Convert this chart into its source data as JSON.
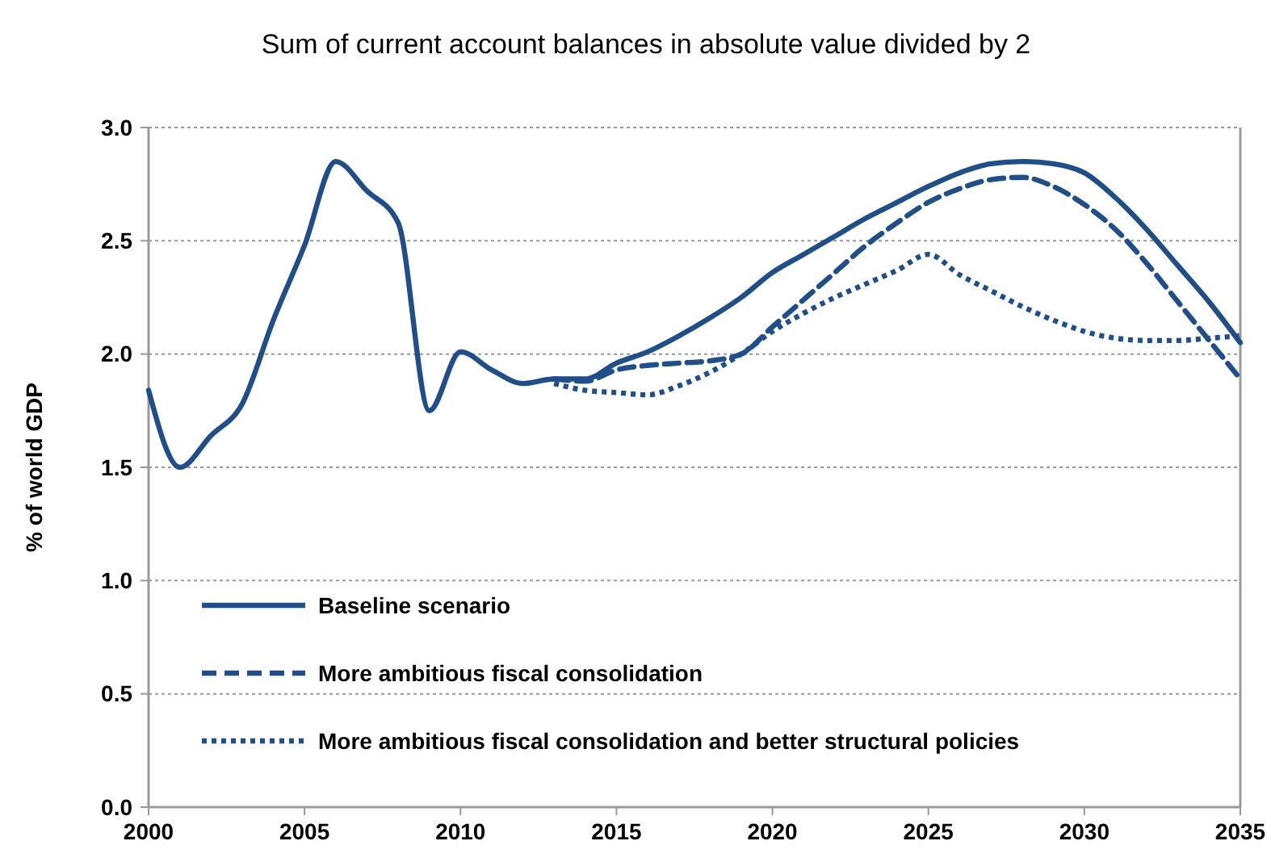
{
  "chart_data": {
    "type": "line",
    "title": "Sum of current account balances in absolute value divided by 2",
    "ylabel": "% of world GDP",
    "xlim": [
      2000,
      2035
    ],
    "xticks": [
      2000,
      2005,
      2010,
      2015,
      2020,
      2025,
      2030,
      2035
    ],
    "ylim": [
      0,
      3
    ],
    "yticks": [
      {
        "value": 0,
        "label": "0.0"
      },
      {
        "value": 0.5,
        "label": "0.5"
      },
      {
        "value": 1,
        "label": "1.0"
      },
      {
        "value": 1.5,
        "label": "1.5"
      },
      {
        "value": 2,
        "label": "2.0"
      },
      {
        "value": 2.5,
        "label": "2.5"
      },
      {
        "value": 3,
        "label": "3.0"
      }
    ],
    "grid": "y",
    "legend": "bottom left",
    "marker": "none",
    "series": [
      {
        "name": "Baseline scenario",
        "color": "#1f4e89",
        "line_style": "solid",
        "x": [
          2000,
          2001,
          2002,
          2003,
          2004,
          2005,
          2006,
          2007,
          2008,
          2009,
          2010,
          2011,
          2012,
          2013,
          2014,
          2015,
          2016,
          2017,
          2018,
          2019,
          2020,
          2021,
          2022,
          2023,
          2024,
          2025,
          2026,
          2027,
          2028,
          2029,
          2030,
          2031,
          2032,
          2033,
          2034,
          2035
        ],
        "values": [
          1.84,
          1.5,
          1.64,
          1.78,
          2.15,
          2.48,
          2.85,
          2.72,
          2.58,
          1.75,
          2.01,
          1.93,
          1.87,
          1.89,
          1.89,
          1.96,
          2.01,
          2.08,
          2.16,
          2.25,
          2.36,
          2.44,
          2.52,
          2.6,
          2.67,
          2.74,
          2.8,
          2.84,
          2.85,
          2.84,
          2.8,
          2.69,
          2.55,
          2.39,
          2.23,
          2.05
        ]
      },
      {
        "name": "More ambitious fiscal consolidation",
        "color": "#1f4e89",
        "line_style": "dashed",
        "x": [
          2013,
          2014,
          2015,
          2016,
          2017,
          2018,
          2019,
          2020,
          2021,
          2022,
          2023,
          2024,
          2025,
          2026,
          2027,
          2028,
          2029,
          2030,
          2031,
          2032,
          2033,
          2034,
          2035
        ],
        "values": [
          1.89,
          1.88,
          1.93,
          1.95,
          1.96,
          1.97,
          2.0,
          2.12,
          2.24,
          2.36,
          2.48,
          2.58,
          2.67,
          2.73,
          2.77,
          2.78,
          2.74,
          2.66,
          2.55,
          2.4,
          2.23,
          2.06,
          1.89
        ]
      },
      {
        "name": "More ambitious fiscal consolidation and better structural policies",
        "color": "#1f4e89",
        "line_style": "dotted",
        "x": [
          2013,
          2014,
          2015,
          2016,
          2017,
          2018,
          2019,
          2020,
          2021,
          2022,
          2023,
          2024,
          2025,
          2026,
          2027,
          2028,
          2029,
          2030,
          2031,
          2032,
          2033,
          2034,
          2035
        ],
        "values": [
          1.87,
          1.84,
          1.83,
          1.82,
          1.86,
          1.92,
          2.0,
          2.1,
          2.18,
          2.25,
          2.31,
          2.37,
          2.44,
          2.35,
          2.28,
          2.21,
          2.15,
          2.1,
          2.07,
          2.06,
          2.06,
          2.07,
          2.08
        ]
      }
    ]
  }
}
